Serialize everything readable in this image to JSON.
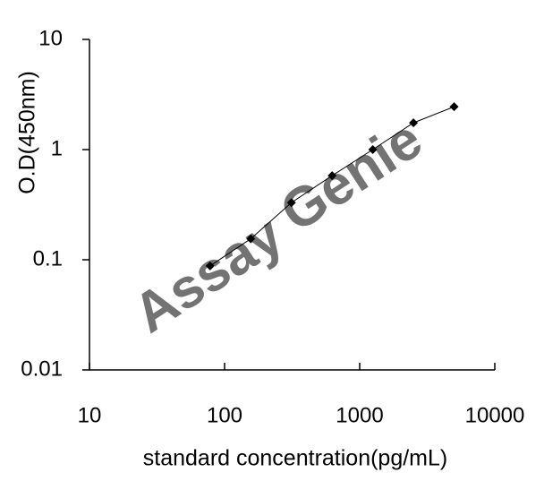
{
  "chart_data": {
    "type": "line",
    "xlabel": "standard concentration(pg/mL)",
    "ylabel": "O.D(450nm)",
    "watermark": [
      "Assay",
      "Genie"
    ],
    "x": [
      78.125,
      156.25,
      312.5,
      625,
      1250,
      2500,
      5000
    ],
    "series": [
      {
        "name": "standard",
        "color": "#000000",
        "values": [
          0.088,
          0.155,
          0.33,
          0.58,
          1.0,
          1.75,
          2.45
        ]
      }
    ],
    "xscale": "log",
    "yscale": "log",
    "xlim": [
      10,
      10000
    ],
    "ylim": [
      0.01,
      10
    ],
    "xticks": [
      10,
      100,
      1000,
      10000
    ],
    "yticks": [
      0.01,
      0.1,
      1,
      10
    ],
    "grid": false
  }
}
